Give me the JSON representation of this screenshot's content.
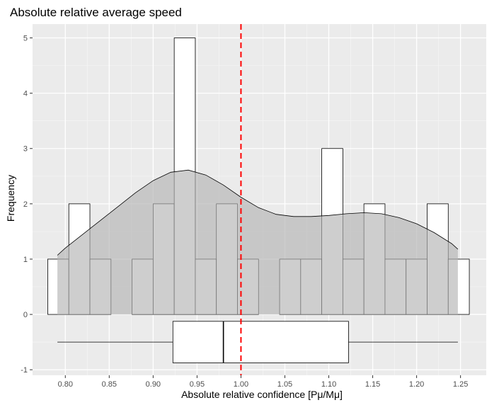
{
  "chart_data": {
    "type": "histogram",
    "title": "Absolute relative average speed",
    "xlabel": "Absolute relative confidence [Pμ/Mμ]",
    "ylabel": "Frequency",
    "xlim": [
      0.7627,
      1.2793
    ],
    "ylim": [
      -1.1,
      5.25
    ],
    "x_ticks": [
      "0.80",
      "0.85",
      "0.90",
      "0.95",
      "1.00",
      "1.05",
      "1.10",
      "1.15",
      "1.20",
      "1.25"
    ],
    "y_ticks": [
      "-1",
      "0",
      "1",
      "2",
      "3",
      "4",
      "5"
    ],
    "grid": true,
    "bin_width": 0.024,
    "bins": [
      {
        "x0": 0.78,
        "x1": 0.804,
        "count": 1
      },
      {
        "x0": 0.804,
        "x1": 0.828,
        "count": 2
      },
      {
        "x0": 0.828,
        "x1": 0.852,
        "count": 1
      },
      {
        "x0": 0.852,
        "x1": 0.876,
        "count": 0
      },
      {
        "x0": 0.876,
        "x1": 0.9,
        "count": 1
      },
      {
        "x0": 0.9,
        "x1": 0.924,
        "count": 2
      },
      {
        "x0": 0.924,
        "x1": 0.948,
        "count": 5
      },
      {
        "x0": 0.948,
        "x1": 0.972,
        "count": 1
      },
      {
        "x0": 0.972,
        "x1": 0.996,
        "count": 2
      },
      {
        "x0": 0.996,
        "x1": 1.02,
        "count": 1
      },
      {
        "x0": 1.02,
        "x1": 1.044,
        "count": 0
      },
      {
        "x0": 1.044,
        "x1": 1.068,
        "count": 1
      },
      {
        "x0": 1.068,
        "x1": 1.092,
        "count": 1
      },
      {
        "x0": 1.092,
        "x1": 1.116,
        "count": 3
      },
      {
        "x0": 1.116,
        "x1": 1.14,
        "count": 1
      },
      {
        "x0": 1.14,
        "x1": 1.164,
        "count": 2
      },
      {
        "x0": 1.164,
        "x1": 1.188,
        "count": 1
      },
      {
        "x0": 1.188,
        "x1": 1.212,
        "count": 1
      },
      {
        "x0": 1.212,
        "x1": 1.236,
        "count": 2
      },
      {
        "x0": 1.236,
        "x1": 1.26,
        "count": 1
      }
    ],
    "density_curve": {
      "x": [
        0.791,
        0.8,
        0.82,
        0.84,
        0.86,
        0.88,
        0.9,
        0.92,
        0.94,
        0.96,
        0.98,
        1.0,
        1.02,
        1.04,
        1.06,
        1.08,
        1.1,
        1.12,
        1.14,
        1.16,
        1.18,
        1.2,
        1.22,
        1.24,
        1.247
      ],
      "y": [
        1.07,
        1.2,
        1.45,
        1.7,
        1.95,
        2.2,
        2.42,
        2.57,
        2.61,
        2.52,
        2.34,
        2.12,
        1.93,
        1.81,
        1.77,
        1.77,
        1.79,
        1.82,
        1.84,
        1.82,
        1.75,
        1.64,
        1.48,
        1.28,
        1.18
      ]
    },
    "reference_line": {
      "x": 1.0,
      "color": "#ff0000",
      "style": "dashed"
    },
    "boxplot": {
      "y_center": -0.5,
      "half_height": 0.375,
      "whisker_low": 0.791,
      "q1": 0.9225,
      "median": 0.98,
      "q3": 1.1225,
      "whisker_high": 1.247
    },
    "colors": {
      "panel": "#ebebeb",
      "grid_major": "#ffffff",
      "bar_fill": "#ffffff",
      "bar_stroke": "#000000",
      "density_fill": "#b3b3b3",
      "reference": "#ff0000"
    }
  }
}
